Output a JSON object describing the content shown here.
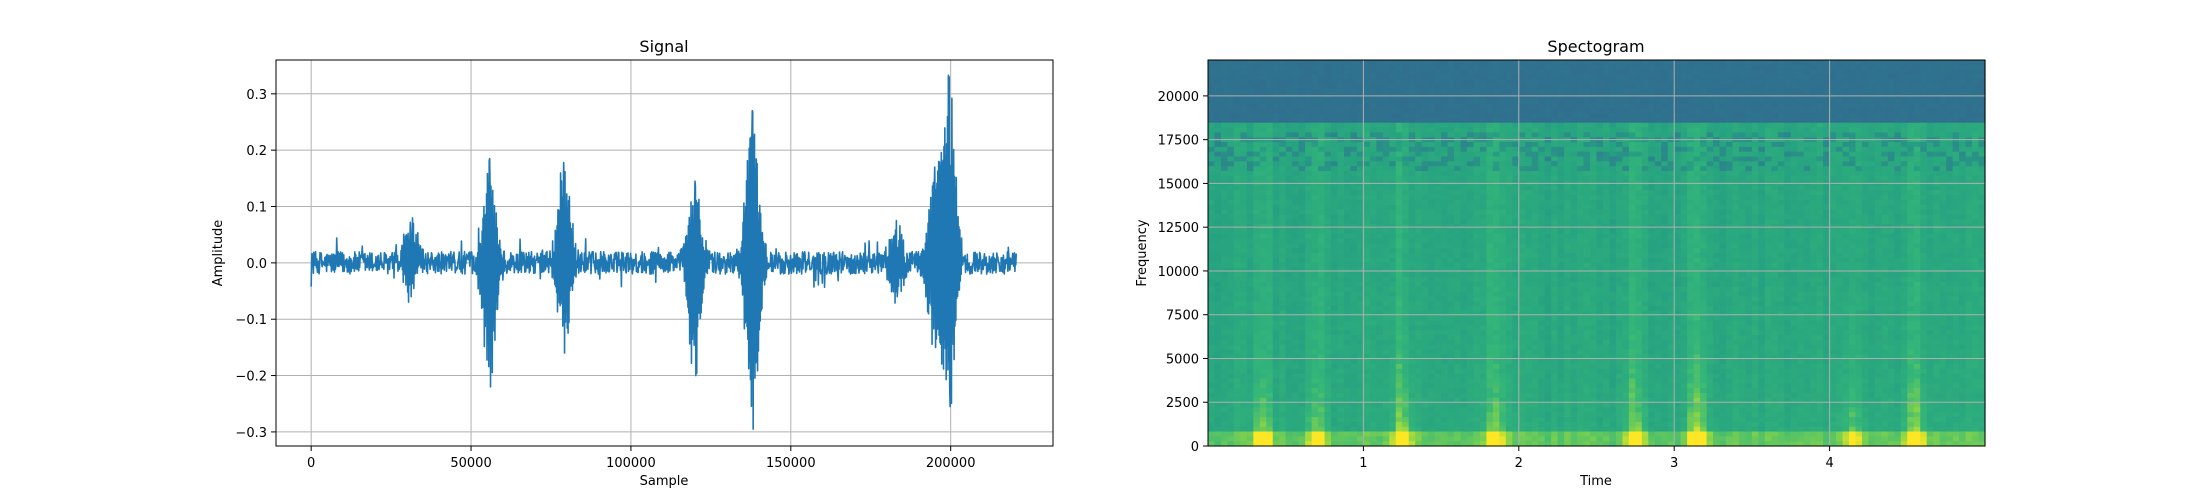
{
  "chart_data": [
    {
      "type": "line",
      "title": "Signal",
      "xlabel": "Sample",
      "ylabel": "Amplitude",
      "xlim": [
        -11000,
        232000
      ],
      "ylim": [
        -0.325,
        0.36
      ],
      "grid": true,
      "x_ticks": [
        0,
        50000,
        100000,
        150000,
        200000
      ],
      "x_tick_labels": [
        "0",
        "50000",
        "100000",
        "150000",
        "200000"
      ],
      "y_ticks": [
        -0.3,
        -0.2,
        -0.1,
        0.0,
        0.1,
        0.2,
        0.3
      ],
      "y_tick_labels": [
        "−0.3",
        "−0.2",
        "−0.1",
        "0.0",
        "0.1",
        "0.2",
        "0.3"
      ],
      "color": "#1f77b4",
      "series": [
        {
          "x_range": [
            0,
            220500
          ],
          "baseline_amplitude": 0.02,
          "peaks": [
            {
              "x": 31000,
              "max": 0.072,
              "min": -0.06
            },
            {
              "x": 55800,
              "max": 0.185,
              "min": -0.22
            },
            {
              "x": 79000,
              "max": 0.178,
              "min": -0.16
            },
            {
              "x": 120000,
              "max": 0.145,
              "min": -0.2
            },
            {
              "x": 138000,
              "max": 0.27,
              "min": -0.295
            },
            {
              "x": 183000,
              "max": 0.075,
              "min": -0.06
            },
            {
              "x": 195000,
              "max": 0.17,
              "min": -0.15
            },
            {
              "x": 199500,
              "max": 0.33,
              "min": -0.255
            }
          ]
        }
      ]
    },
    {
      "type": "heatmap",
      "title": "Spectogram",
      "xlabel": "Time",
      "ylabel": "Frequency",
      "xlim": [
        0,
        5.0
      ],
      "ylim": [
        0,
        22050
      ],
      "grid": true,
      "x_ticks": [
        1,
        2,
        3,
        4
      ],
      "x_tick_labels": [
        "1",
        "2",
        "3",
        "4"
      ],
      "y_ticks": [
        0,
        2500,
        5000,
        7500,
        10000,
        12500,
        15000,
        17500,
        20000
      ],
      "y_tick_labels": [
        "0",
        "2500",
        "5000",
        "7500",
        "10000",
        "12500",
        "15000",
        "17500",
        "20000"
      ],
      "colormap": [
        "#440154",
        "#31688e",
        "#2d7f8e",
        "#26a281",
        "#35b779",
        "#8fd744",
        "#fde725"
      ],
      "high_frequency_cutoff": 18500,
      "bursts": [
        {
          "t": 0.35,
          "intensity": 0.55
        },
        {
          "t": 0.7,
          "intensity": 0.5
        },
        {
          "t": 1.25,
          "intensity": 0.65
        },
        {
          "t": 1.85,
          "intensity": 0.55
        },
        {
          "t": 2.75,
          "intensity": 0.6
        },
        {
          "t": 3.15,
          "intensity": 0.75
        },
        {
          "t": 4.15,
          "intensity": 0.45
        },
        {
          "t": 4.55,
          "intensity": 0.7
        }
      ]
    }
  ]
}
